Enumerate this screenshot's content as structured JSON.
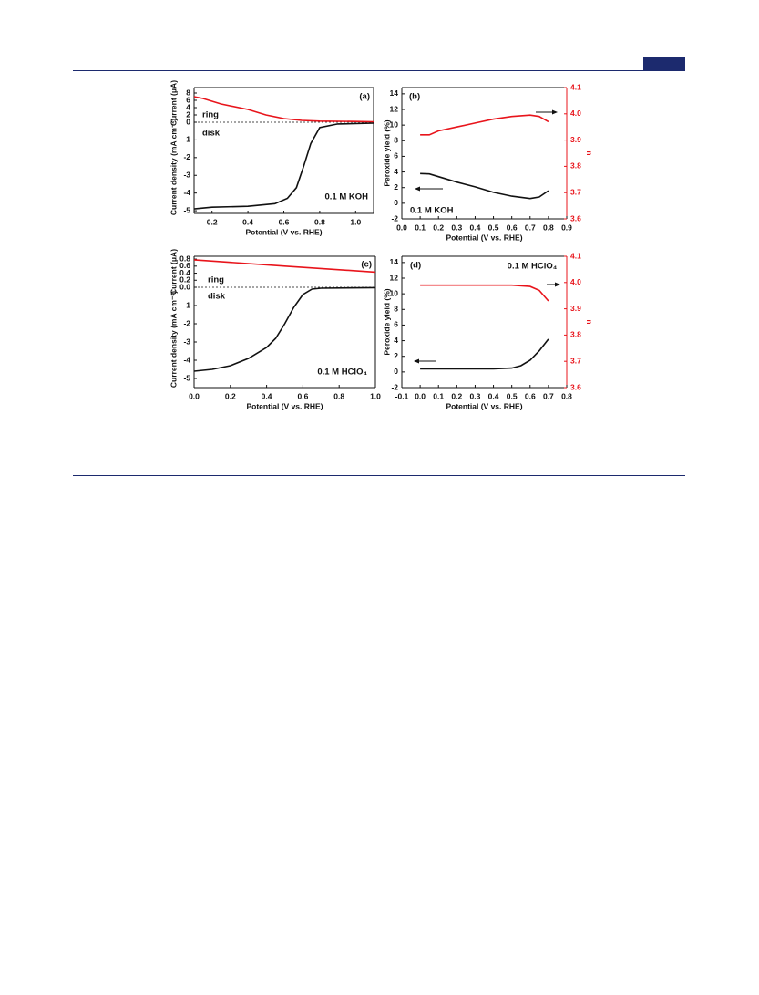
{
  "chart_data": [
    {
      "type": "line",
      "label": "(a)",
      "annotations": [
        "ring",
        "disk",
        "0.1 M KOH"
      ],
      "x_label": "Potential (V vs. RHE)",
      "y_label": "Current density (mA cm⁻²)",
      "y2_label": "Current (μA)",
      "xlim": [
        0.1,
        1.1
      ],
      "xticks": [
        0.2,
        0.4,
        0.6,
        0.8,
        {
          "value": 1.0,
          "label": "1.0"
        }
      ],
      "ylim": [
        -5.15,
        0
      ],
      "yticks": [
        -1,
        -2,
        -3,
        -4,
        -5
      ],
      "y2lim": [
        0,
        9.5
      ],
      "y2ticks": [
        0,
        2,
        4,
        6,
        8
      ],
      "series": [
        {
          "name": "ring",
          "color": "#e8141b",
          "axis": "y2",
          "x": [
            0.1,
            0.15,
            0.25,
            0.4,
            0.5,
            0.6,
            0.7,
            0.8,
            1.0,
            1.1
          ],
          "values": [
            7,
            6.5,
            5,
            3.5,
            2,
            1,
            0.5,
            0.3,
            0.2,
            0.1
          ]
        },
        {
          "name": "disk",
          "color": "#111111",
          "x": [
            0.1,
            0.2,
            0.4,
            0.55,
            0.62,
            0.67,
            0.71,
            0.75,
            0.8,
            0.9,
            1.1
          ],
          "values": [
            -4.9,
            -4.8,
            -4.75,
            -4.6,
            -4.3,
            -3.7,
            -2.5,
            -1.2,
            -0.3,
            -0.1,
            -0.05
          ]
        }
      ]
    },
    {
      "type": "line",
      "label": "(b)",
      "annotations": [
        "0.1 M KOH"
      ],
      "x_label": "Potential (V vs. RHE)",
      "y_label": "Peroxide yield (%)",
      "y2_label": "n",
      "xlim": [
        0,
        0.9
      ],
      "xticks": [
        {
          "value": 0,
          "label": "0.0"
        },
        0.1,
        0.2,
        0.3,
        0.4,
        0.5,
        0.6,
        0.7,
        0.8,
        0.9
      ],
      "ylim": [
        -2,
        14.8
      ],
      "yticks": [
        -2,
        0,
        2,
        4,
        6,
        8,
        10,
        12,
        14
      ],
      "y2lim": [
        3.6,
        4.1
      ],
      "y2ticks": [
        3.6,
        3.7,
        3.8,
        3.9,
        {
          "value": 4.0,
          "label": "4.0"
        },
        4.1
      ],
      "series": [
        {
          "color": "#111111",
          "x": [
            0.1,
            0.15,
            0.2,
            0.3,
            0.4,
            0.5,
            0.6,
            0.7,
            0.75,
            0.8
          ],
          "values": [
            3.8,
            3.75,
            3.4,
            2.7,
            2.1,
            1.4,
            0.9,
            0.6,
            0.8,
            1.6
          ]
        },
        {
          "color": "#e8141b",
          "axis": "y2",
          "x": [
            0.1,
            0.15,
            0.2,
            0.3,
            0.4,
            0.5,
            0.6,
            0.7,
            0.75,
            0.8
          ],
          "values": [
            3.92,
            3.92,
            3.935,
            3.95,
            3.965,
            3.98,
            3.99,
            3.995,
            3.99,
            3.97
          ]
        }
      ]
    },
    {
      "type": "line",
      "label": "(c)",
      "annotations": [
        "ring",
        "disk",
        "0.1 M HClO₄"
      ],
      "x_label": "Potential (V vs. RHE)",
      "y_label": "Current density (mA cm⁻²)",
      "y2_label": "Current (μA)",
      "xlim": [
        0,
        1
      ],
      "xticks": [
        {
          "value": 0,
          "label": "0.0"
        },
        0.2,
        0.4,
        0.6,
        0.8,
        {
          "value": 1.0,
          "label": "1.0"
        }
      ],
      "ylim": [
        -5.5,
        0
      ],
      "yticks": [
        -1,
        -2,
        -3,
        -4,
        -5
      ],
      "y2lim": [
        0,
        0.88
      ],
      "y2ticks": [
        {
          "value": 0,
          "label": "0.0"
        },
        0.2,
        0.4,
        0.6,
        0.8
      ],
      "series": [
        {
          "name": "ring",
          "color": "#e8141b",
          "axis": "y2",
          "x": [
            0,
            0.5,
            1.0
          ],
          "values": [
            0.78,
            0.6,
            0.43
          ]
        },
        {
          "name": "disk",
          "color": "#111111",
          "x": [
            0,
            0.1,
            0.2,
            0.3,
            0.4,
            0.45,
            0.5,
            0.55,
            0.6,
            0.65,
            0.7,
            1.0
          ],
          "values": [
            -4.6,
            -4.5,
            -4.3,
            -3.9,
            -3.3,
            -2.8,
            -2.0,
            -1.1,
            -0.4,
            -0.1,
            -0.05,
            -0.02
          ]
        }
      ]
    },
    {
      "type": "line",
      "label": "(d)",
      "annotations": [
        "0.1 M HClO₄"
      ],
      "x_label": "Potential (V vs. RHE)",
      "y_label": "Peroxide yield (%)",
      "y2_label": "n",
      "xlim": [
        -0.1,
        0.8
      ],
      "xticks": [
        -0.1,
        {
          "value": 0,
          "label": "0.0"
        },
        0.1,
        0.2,
        0.3,
        0.4,
        0.5,
        0.6,
        0.7,
        0.8
      ],
      "ylim": [
        -2,
        14.8
      ],
      "yticks": [
        -2,
        0,
        2,
        4,
        6,
        8,
        10,
        12,
        14
      ],
      "y2lim": [
        3.6,
        4.1
      ],
      "y2ticks": [
        3.6,
        3.7,
        3.8,
        3.9,
        {
          "value": 4.0,
          "label": "4.0"
        },
        4.1
      ],
      "series": [
        {
          "color": "#111111",
          "x": [
            0,
            0.2,
            0.4,
            0.5,
            0.55,
            0.6,
            0.65,
            0.7
          ],
          "values": [
            0.4,
            0.4,
            0.4,
            0.5,
            0.8,
            1.5,
            2.7,
            4.2
          ]
        },
        {
          "color": "#e8141b",
          "axis": "y2",
          "x": [
            0,
            0.3,
            0.5,
            0.6,
            0.65,
            0.7
          ],
          "values": [
            3.99,
            3.99,
            3.99,
            3.985,
            3.97,
            3.93
          ]
        }
      ]
    }
  ]
}
